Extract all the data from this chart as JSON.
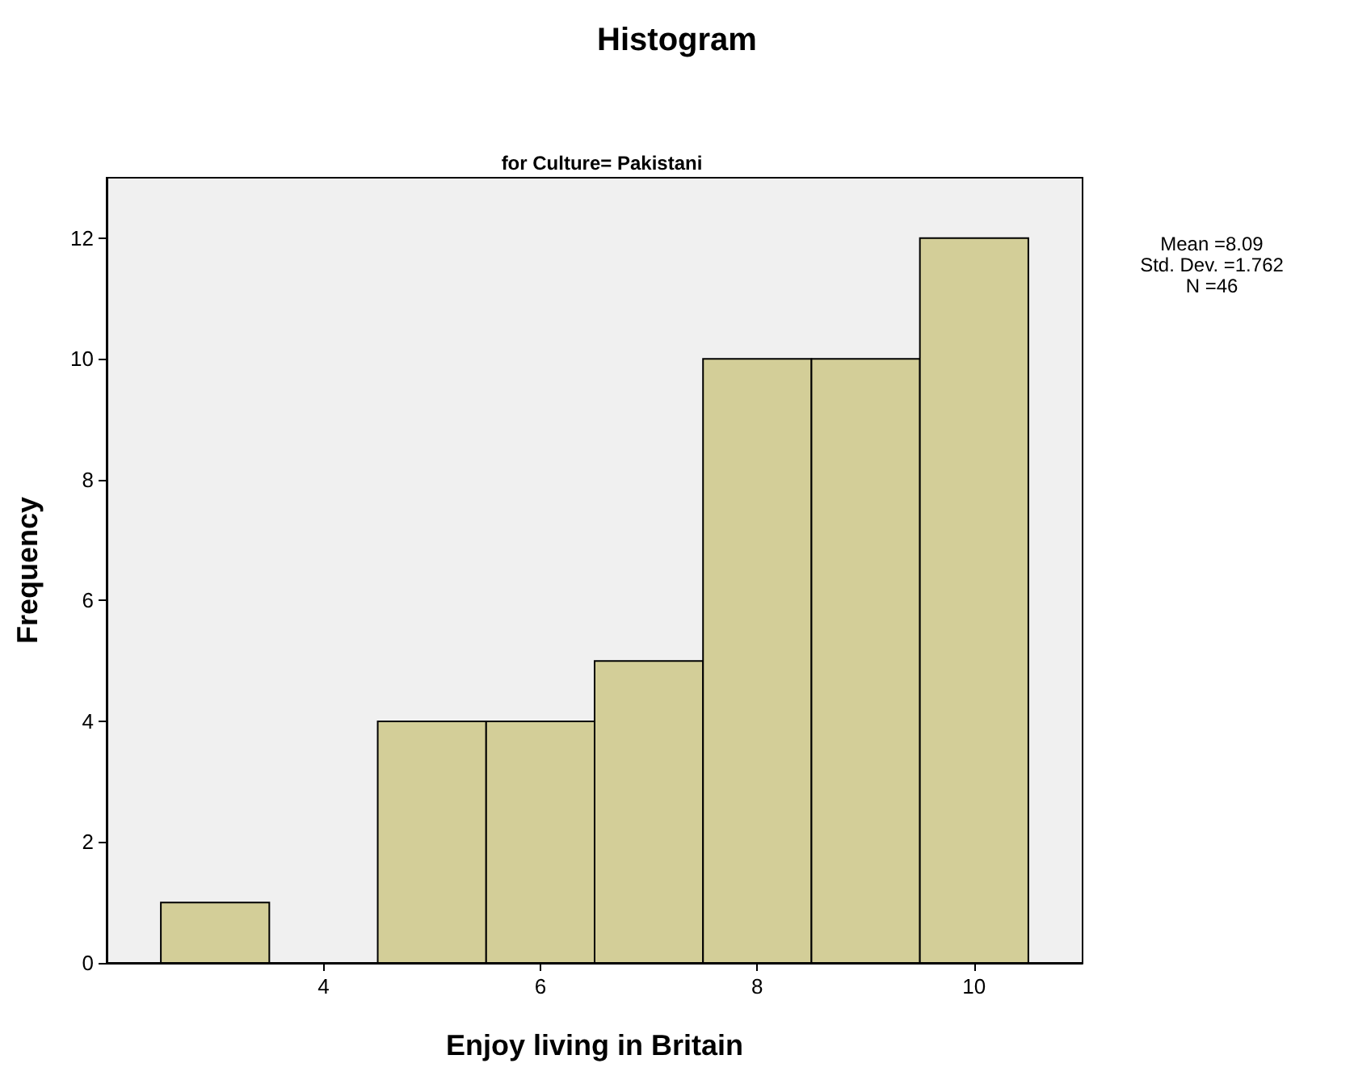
{
  "chart_data": {
    "type": "histogram",
    "title": "Histogram",
    "subtitle": "for Culture= Pakistani",
    "xlabel": "Enjoy living in Britain",
    "ylabel": "Frequency",
    "bins": [
      2.5,
      3.5,
      4.5,
      5.5,
      6.5,
      7.5,
      8.5,
      9.5,
      10.5
    ],
    "values": [
      1,
      0,
      4,
      4,
      5,
      10,
      10,
      12
    ],
    "color": "#d3ce98",
    "xlim": [
      2,
      11
    ],
    "xticks": [
      4,
      6,
      8,
      10
    ],
    "ylim": [
      0,
      13
    ],
    "yticks": [
      0,
      2,
      4,
      6,
      8,
      10,
      12
    ],
    "grid": false,
    "annotations": [
      "Mean =8.09",
      "Std. Dev. =1.762",
      "N =46"
    ]
  }
}
